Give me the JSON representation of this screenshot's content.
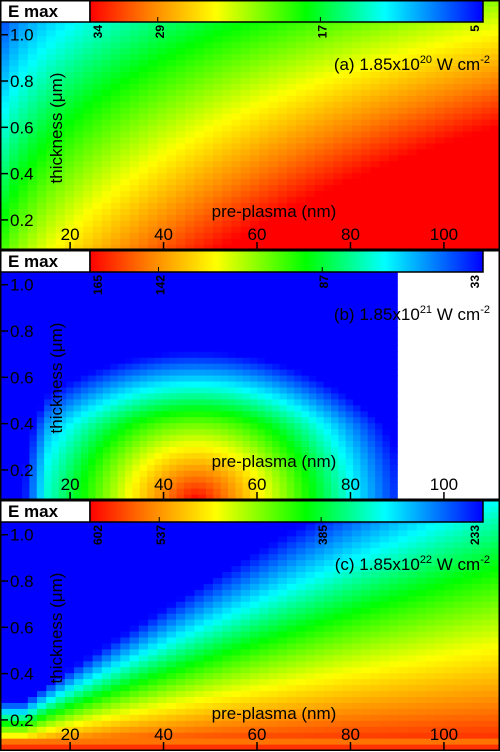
{
  "chart_data": [
    {
      "type": "heatmap",
      "panel_label": "(a) 1.85x10",
      "panel_exp": "20",
      "panel_unit": " W cm",
      "panel_unit_exp": "-2",
      "colorbar_title": "E max",
      "colorbar_ticks": [
        "34",
        "29",
        "17",
        "5"
      ],
      "colorbar_tick_values": [
        34,
        29,
        17,
        5
      ],
      "colorbar_range": [
        34,
        5
      ],
      "xlabel": "pre-plasma (nm)",
      "ylabel": "thickness (μm)",
      "xticks": [
        20,
        40,
        60,
        80,
        100
      ],
      "yticks": [
        0.2,
        0.4,
        0.6,
        0.8,
        1.0
      ],
      "xlim": [
        5,
        112
      ],
      "ylim": [
        0.07,
        1.15
      ],
      "data_x_range": [
        5,
        112
      ],
      "data_y_range": [
        0.07,
        1.15
      ],
      "field_mode": "a",
      "field_description": "field value increases with pre-plasma and decreases with thickness"
    },
    {
      "type": "heatmap",
      "panel_label": "(b) 1.85x10",
      "panel_exp": "21",
      "panel_unit": " W cm",
      "panel_unit_exp": "-2",
      "colorbar_title": "E max",
      "colorbar_ticks": [
        "165",
        "142",
        "87",
        "33"
      ],
      "colorbar_tick_values": [
        165,
        142,
        87,
        33
      ],
      "colorbar_range": [
        165,
        33
      ],
      "xlabel": "pre-plasma (nm)",
      "ylabel": "thickness (μm)",
      "xticks": [
        20,
        40,
        60,
        80,
        100
      ],
      "yticks": [
        0.2,
        0.4,
        0.6,
        0.8,
        1.0
      ],
      "xlim": [
        5,
        112
      ],
      "ylim": [
        0.07,
        1.15
      ],
      "data_x_range": [
        5,
        90
      ],
      "data_y_range": [
        0.07,
        1.15
      ],
      "field_mode": "b",
      "field_description": "maximum near pre-plasma 45 nm at thin targets"
    },
    {
      "type": "heatmap",
      "panel_label": "(c) 1.85x10",
      "panel_exp": "22",
      "panel_unit": " W cm",
      "panel_unit_exp": "-2",
      "colorbar_title": "E max",
      "colorbar_ticks": [
        "602",
        "537",
        "385",
        "233"
      ],
      "colorbar_tick_values": [
        602,
        537,
        385,
        233
      ],
      "colorbar_range": [
        602,
        233
      ],
      "xlabel": "pre-plasma (nm)",
      "ylabel": "thickness (μm)",
      "xticks": [
        20,
        40,
        60,
        80,
        100
      ],
      "yticks": [
        0.2,
        0.4,
        0.6,
        0.8,
        1.0
      ],
      "xlim": [
        5,
        112
      ],
      "ylim": [
        0.07,
        1.15
      ],
      "data_x_range": [
        5,
        112
      ],
      "data_y_range": [
        0.07,
        1.15
      ],
      "field_mode": "c",
      "field_description": "maximum along the thinnest targets, decreasing with thickness"
    }
  ],
  "colors": {
    "colormap": [
      "#ff0000",
      "#ff8000",
      "#ffff00",
      "#00ff00",
      "#00ffff",
      "#0000ff"
    ],
    "frame": "#000000",
    "text": "#000000"
  }
}
